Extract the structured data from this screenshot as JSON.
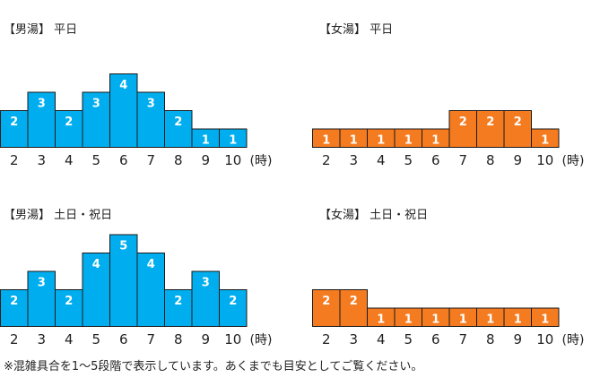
{
  "note": "※混雑具合を1～5段階で表示しています。あくまでも目安としてご覧ください。",
  "colors": {
    "male": "#00AEEF",
    "female": "#F47B20",
    "border": "#1a1a1a"
  },
  "chart_data": [
    {
      "type": "bar",
      "title": "【男湯】 平日",
      "categories": [
        "2",
        "3",
        "4",
        "5",
        "6",
        "7",
        "8",
        "9",
        "10"
      ],
      "values": [
        2,
        3,
        2,
        3,
        4,
        3,
        2,
        1,
        1
      ],
      "x_unit": "(時)",
      "ylim": [
        0,
        5
      ],
      "color": "#00AEEF"
    },
    {
      "type": "bar",
      "title": "【女湯】 平日",
      "categories": [
        "2",
        "3",
        "4",
        "5",
        "6",
        "7",
        "8",
        "9",
        "10"
      ],
      "values": [
        1,
        1,
        1,
        1,
        1,
        2,
        2,
        2,
        1
      ],
      "x_unit": "(時)",
      "ylim": [
        0,
        5
      ],
      "color": "#F47B20"
    },
    {
      "type": "bar",
      "title": "【男湯】 土日・祝日",
      "categories": [
        "2",
        "3",
        "4",
        "5",
        "6",
        "7",
        "8",
        "9",
        "10"
      ],
      "values": [
        2,
        3,
        2,
        4,
        5,
        4,
        2,
        3,
        2
      ],
      "x_unit": "(時)",
      "ylim": [
        0,
        5
      ],
      "color": "#00AEEF"
    },
    {
      "type": "bar",
      "title": "【女湯】 土日・祝日",
      "categories": [
        "2",
        "3",
        "4",
        "5",
        "6",
        "7",
        "8",
        "9",
        "10"
      ],
      "values": [
        2,
        2,
        1,
        1,
        1,
        1,
        1,
        1,
        1
      ],
      "x_unit": "(時)",
      "ylim": [
        0,
        5
      ],
      "color": "#F47B20"
    }
  ]
}
